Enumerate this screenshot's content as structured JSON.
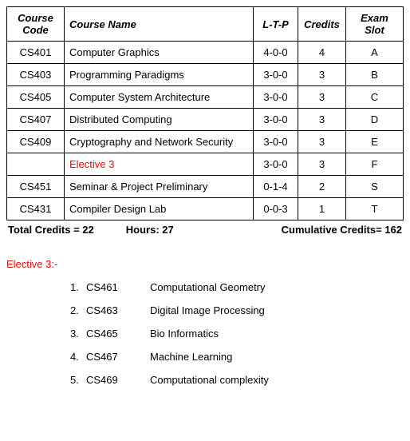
{
  "table": {
    "columns": [
      "Course Code",
      "Course Name",
      "L-T-P",
      "Credits",
      "Exam Slot"
    ],
    "col_align": [
      "center",
      "left",
      "center",
      "center",
      "center"
    ],
    "rows": [
      {
        "code": "CS401",
        "name": "Computer Graphics",
        "ltp": "4-0-0",
        "credits": "4",
        "slot": "A",
        "name_red": false
      },
      {
        "code": "CS403",
        "name": "Programming Paradigms",
        "ltp": "3-0-0",
        "credits": "3",
        "slot": "B",
        "name_red": false
      },
      {
        "code": "CS405",
        "name": "Computer System Architecture",
        "ltp": "3-0-0",
        "credits": "3",
        "slot": "C",
        "name_red": false
      },
      {
        "code": "CS407",
        "name": "Distributed Computing",
        "ltp": "3-0-0",
        "credits": "3",
        "slot": "D",
        "name_red": false
      },
      {
        "code": "CS409",
        "name": "Cryptography and Network Security",
        "ltp": "3-0-0",
        "credits": "3",
        "slot": "E",
        "name_red": false
      },
      {
        "code": "",
        "name": "Elective 3",
        "ltp": "3-0-0",
        "credits": "3",
        "slot": "F",
        "name_red": true
      },
      {
        "code": "CS451",
        "name": "Seminar & Project Preliminary",
        "ltp": "0-1-4",
        "credits": "2",
        "slot": "S",
        "name_red": false
      },
      {
        "code": "CS431",
        "name": "Compiler Design Lab",
        "ltp": "0-0-3",
        "credits": "1",
        "slot": "T",
        "name_red": false
      }
    ]
  },
  "summary": {
    "total_credits_label": "Total Credits = 22",
    "hours_label": "Hours: 27",
    "cumulative_label": "Cumulative Credits= 162"
  },
  "elective": {
    "heading": "Elective 3:-",
    "items": [
      {
        "num": "1.",
        "code": "CS461",
        "name": "Computational Geometry"
      },
      {
        "num": "2.",
        "code": "CS463",
        "name": "Digital Image Processing"
      },
      {
        "num": "3.",
        "code": "CS465",
        "name": "Bio Informatics"
      },
      {
        "num": "4.",
        "code": "CS467",
        "name": "Machine Learning"
      },
      {
        "num": "5.",
        "code": "CS469",
        "name": "Computational complexity"
      }
    ]
  }
}
